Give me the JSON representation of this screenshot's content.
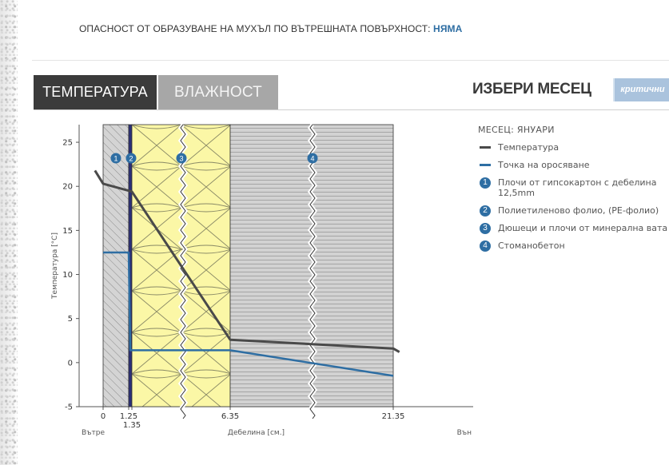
{
  "header": {
    "risk_label": "ОПАСНОСТ ОТ ОБРАЗУВАНЕ НА МУХЪЛ ПО ВЪТРЕШНАТА ПОВЪРХНОСТ:",
    "risk_value": "НЯМА"
  },
  "tabs": [
    {
      "label": "ТЕМПЕРАТУРА",
      "active": true
    },
    {
      "label": "ВЛАЖНОСТ",
      "active": false
    }
  ],
  "month_selector": {
    "title": "ИЗБЕРИ МЕСЕЦ",
    "button_label": "критични"
  },
  "colors": {
    "temperature": "#4a4a4a",
    "dew_point": "#2e6ea3",
    "gypsum": "#d0d0d0",
    "foil": "#2b2f78",
    "insulation": "#fbf7a6",
    "concrete": "#cfcfcf",
    "badge": "#2e6ea3"
  },
  "legend": {
    "month": "МЕСЕЦ: ЯНУАРИ",
    "series": [
      {
        "name": "Температура",
        "icon": "dark-line"
      },
      {
        "name": "Точка на оросяване",
        "icon": "blue-line"
      }
    ],
    "layers": [
      {
        "num": "1",
        "name": "Плочи от гипсокартон с дебелина 12,5mm"
      },
      {
        "num": "2",
        "name": "Полиетиленово фолио, (PE-фолио)"
      },
      {
        "num": "3",
        "name": "Дюшеци и плочи от минерална вата"
      },
      {
        "num": "4",
        "name": "Стоманобетон"
      }
    ]
  },
  "chart_data": {
    "type": "line",
    "ylabel": "Температура [°С]",
    "xlabel": "Дебелина [см.]",
    "x_left_label": "Вътре",
    "x_right_label": "Вън",
    "ylim": [
      -5,
      27
    ],
    "y_ticks": [
      -5,
      0,
      5,
      10,
      15,
      20,
      25
    ],
    "x_ticks": [
      {
        "value": 0,
        "label": "0"
      },
      {
        "value": 1.25,
        "label": "1.25"
      },
      {
        "value": 1.35,
        "label": "1.35"
      },
      {
        "value": 6.35,
        "label": "6.35"
      },
      {
        "value": 21.35,
        "label": "21.35"
      }
    ],
    "layers": [
      {
        "num": "1",
        "from": 0,
        "to": 1.25
      },
      {
        "num": "2",
        "from": 1.25,
        "to": 1.35
      },
      {
        "num": "3",
        "from": 1.35,
        "to": 6.35
      },
      {
        "num": "4",
        "from": 6.35,
        "to": 21.35
      }
    ],
    "series": [
      {
        "name": "Температура",
        "points": [
          [
            -0.6,
            21.8
          ],
          [
            0,
            20.3
          ],
          [
            1.25,
            19.5
          ],
          [
            1.35,
            19.4
          ],
          [
            6.35,
            2.6
          ],
          [
            21.35,
            1.6
          ],
          [
            21.9,
            1.2
          ]
        ]
      },
      {
        "name": "Точка на оросяване",
        "points": [
          [
            0,
            12.5
          ],
          [
            1.25,
            12.5
          ],
          [
            1.3,
            1.4
          ],
          [
            6.35,
            1.4
          ],
          [
            21.35,
            -1.5
          ]
        ]
      }
    ]
  }
}
